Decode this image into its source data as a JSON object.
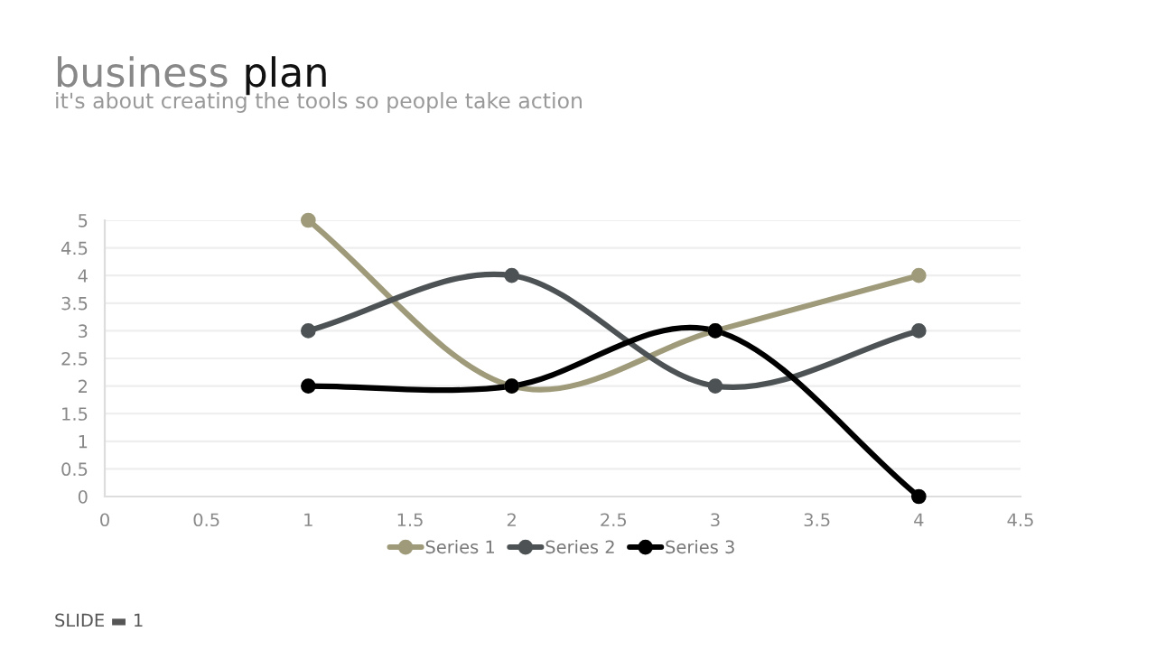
{
  "chart_data": {
    "type": "line",
    "title": "business plan",
    "subtitle": "it's about creating the tools so people take action",
    "x": [
      1,
      2,
      3,
      4
    ],
    "series": [
      {
        "name": "Series 1",
        "color": "#9e9a7a",
        "values": [
          5,
          2,
          3,
          4
        ]
      },
      {
        "name": "Series 2",
        "color": "#4d5354",
        "values": [
          3,
          4,
          2,
          3
        ]
      },
      {
        "name": "Series 3",
        "color": "#000000",
        "values": [
          2,
          2,
          3,
          0
        ]
      }
    ],
    "xlim": [
      0,
      4.5
    ],
    "xticks": [
      0,
      0.5,
      1,
      1.5,
      2,
      2.5,
      3,
      3.5,
      4,
      4.5
    ],
    "ylim": [
      0,
      5
    ],
    "yticks": [
      0,
      0.5,
      1,
      1.5,
      2,
      2.5,
      3,
      3.5,
      4,
      4.5,
      5
    ],
    "grid": "y",
    "legend": "bottom",
    "marker": "circle",
    "line_style": "solid",
    "annotations": [
      "SLIDE ▬ 1"
    ]
  }
}
